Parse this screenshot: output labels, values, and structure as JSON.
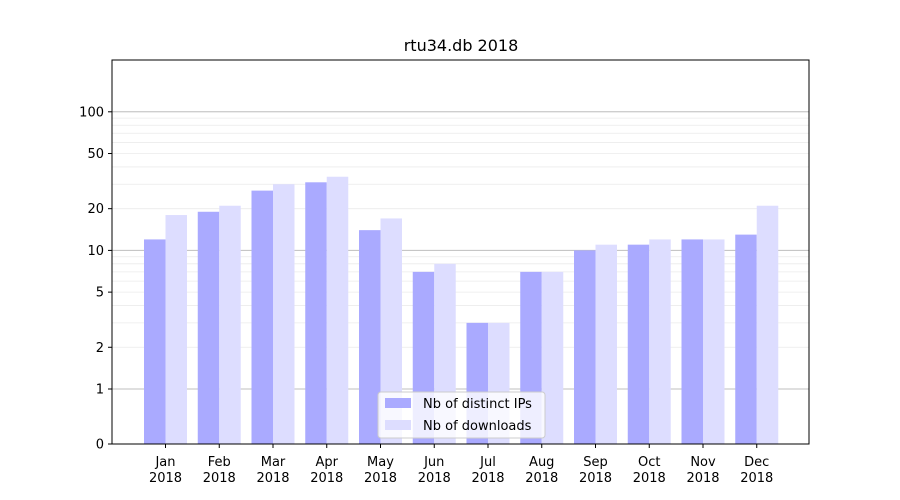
{
  "chart_data": {
    "type": "bar",
    "title": "rtu34.db 2018",
    "xlabel": "",
    "ylabel": "",
    "scale": "symlog",
    "yticks": [
      0,
      1,
      2,
      5,
      10,
      20,
      50,
      100
    ],
    "ytick_labels": [
      "0",
      "1",
      "2",
      "5",
      "10",
      "20",
      "50",
      "100"
    ],
    "categories": [
      "Jan\n2018",
      "Feb\n2018",
      "Mar\n2018",
      "Apr\n2018",
      "May\n2018",
      "Jun\n2018",
      "Jul\n2018",
      "Aug\n2018",
      "Sep\n2018",
      "Oct\n2018",
      "Nov\n2018",
      "Dec\n2018"
    ],
    "series": [
      {
        "name": "Nb of distinct IPs",
        "color": "#aaaaff",
        "values": [
          12,
          19,
          27,
          31,
          14,
          7,
          3,
          7,
          10,
          11,
          12,
          13
        ]
      },
      {
        "name": "Nb of downloads",
        "color": "#ddddff",
        "values": [
          18,
          21,
          30,
          34,
          17,
          8,
          3,
          7,
          11,
          12,
          12,
          21
        ]
      }
    ],
    "grid": true,
    "legend": "bottom-center"
  }
}
